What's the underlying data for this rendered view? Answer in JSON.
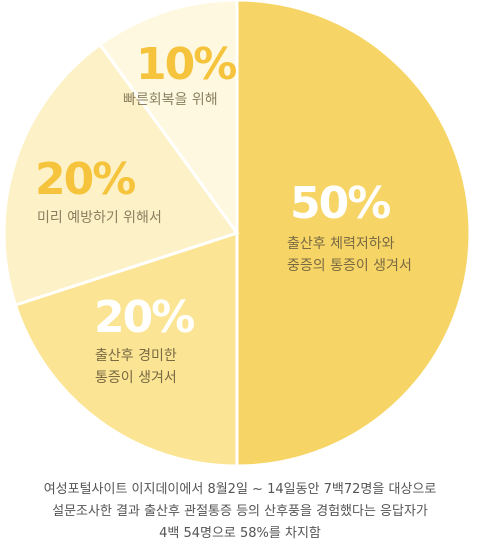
{
  "chart_data": {
    "type": "pie",
    "slices": [
      {
        "value": 50,
        "label": "50%",
        "desc": [
          "출산후 체력저하와",
          "중증의 통증이 생겨서"
        ],
        "color": "#F6D566"
      },
      {
        "value": 20,
        "label": "20%",
        "desc": [
          "출산후 경미한",
          "통증이 생겨서"
        ],
        "color": "#FBE594"
      },
      {
        "value": 20,
        "label": "20%",
        "desc": [
          "미리 예방하기 위해서"
        ],
        "color": "#FDF1C7"
      },
      {
        "value": 10,
        "label": "10%",
        "desc": [
          "빠른회복을 위해"
        ],
        "color": "#FFF8E1"
      }
    ],
    "start": "top",
    "direction": "clockwise",
    "colors": {
      "percent_light": "#ffffff",
      "percent_dark": "#F5C43C",
      "desc_dark": "#7a6a43",
      "desc_light": "#8a8060"
    }
  },
  "caption": [
    "여성포털사이트 이지데이에서 8월2일 ~ 14일동안 7백72명을 대상으로",
    "설문조사한 결과 출산후 관절통증 등의 산후풍을 경험했다는 응답자가",
    "4백 54명으로 58%를 차지함"
  ]
}
